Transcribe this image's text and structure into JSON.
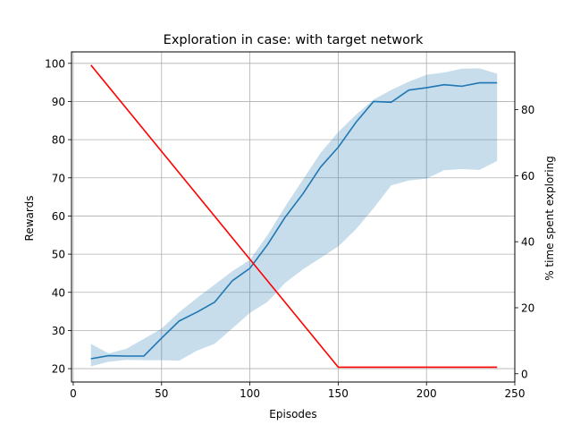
{
  "chart_data": {
    "type": "line",
    "title": "Exploration in case: with target network",
    "xlabel": "Episodes",
    "ylabel": "Rewards",
    "y2label": "% time spent exploring",
    "xlim": [
      -1,
      250
    ],
    "ylim": [
      16.5,
      103
    ],
    "y2lim": [
      -2.5,
      97.5
    ],
    "grid": true,
    "xticks": [
      0,
      50,
      100,
      150,
      200,
      250
    ],
    "yticks": [
      20,
      30,
      40,
      50,
      60,
      70,
      80,
      90,
      100
    ],
    "y2ticks": [
      0,
      20,
      40,
      60,
      80
    ],
    "colors": {
      "reward": "#1f77b4",
      "band": "#1f77b4",
      "exploration": "#ff0000",
      "grid": "#b0b0b0",
      "axis": "#000000"
    },
    "series": [
      {
        "axis": "left",
        "style": "line",
        "x": [
          10,
          20,
          30,
          40,
          50,
          60,
          70,
          80,
          90,
          100,
          110,
          120,
          130,
          140,
          150,
          160,
          170,
          180,
          190,
          200,
          210,
          220,
          230,
          240
        ],
        "values": [
          22.6,
          23.4,
          23.3,
          23.3,
          28.0,
          32.5,
          34.8,
          37.4,
          43.0,
          46.3,
          52.5,
          59.7,
          65.8,
          72.8,
          78.0,
          84.5,
          90.0,
          89.8,
          93.0,
          93.6,
          94.4,
          94.0,
          94.9,
          94.9
        ]
      },
      {
        "axis": "left",
        "style": "band",
        "x": [
          10,
          20,
          30,
          40,
          50,
          60,
          70,
          80,
          90,
          100,
          110,
          120,
          130,
          140,
          150,
          160,
          170,
          180,
          190,
          200,
          210,
          220,
          230,
          240
        ],
        "upper": [
          26.5,
          24.0,
          25.2,
          27.8,
          30.5,
          34.8,
          38.5,
          42.0,
          45.5,
          48.5,
          55.0,
          62.5,
          69.5,
          76.5,
          82.0,
          86.5,
          90.5,
          93.0,
          95.2,
          97.0,
          97.6,
          98.6,
          98.7,
          97.3
        ],
        "lower": [
          20.6,
          21.8,
          22.3,
          22.2,
          22.2,
          22.1,
          24.7,
          26.5,
          30.5,
          34.6,
          37.5,
          42.5,
          46.0,
          49.0,
          52.0,
          56.5,
          62.0,
          68.0,
          69.3,
          69.8,
          72.0,
          72.3,
          72.1,
          74.4
        ]
      },
      {
        "axis": "right",
        "style": "line",
        "x": [
          10,
          150,
          240
        ],
        "values": [
          93.5,
          2.0,
          2.0
        ]
      }
    ]
  }
}
